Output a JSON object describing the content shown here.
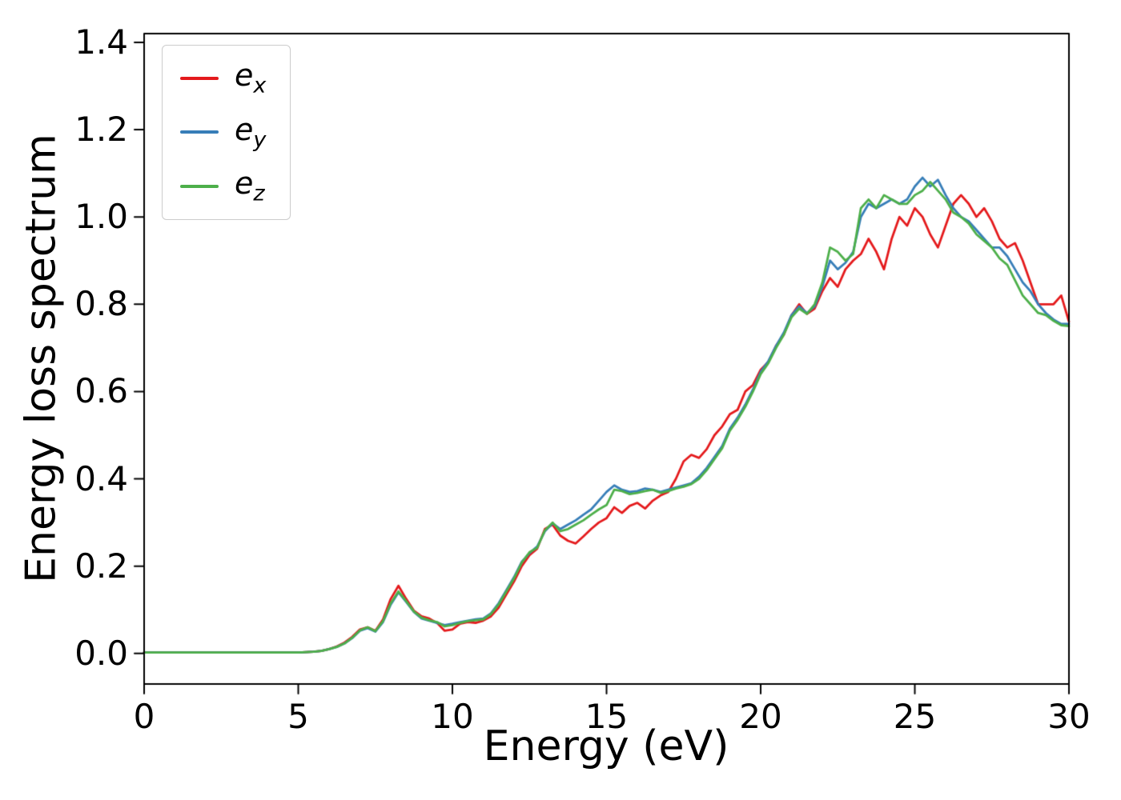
{
  "figure": {
    "background": "#ffffff"
  },
  "chart_data": {
    "type": "line",
    "title": "",
    "xlabel": "Energy (eV)",
    "ylabel": "Energy loss spectrum",
    "xlim": [
      0,
      30
    ],
    "ylim": [
      -0.07,
      1.42
    ],
    "grid": false,
    "legend_position": "upper left",
    "xticks": {
      "values": [
        0,
        5,
        10,
        15,
        20,
        25,
        30
      ],
      "labels": [
        "0",
        "5",
        "10",
        "15",
        "20",
        "25",
        "30"
      ]
    },
    "yticks": {
      "values": [
        0,
        0.2,
        0.4,
        0.6,
        0.8,
        1.0,
        1.2,
        1.4
      ],
      "labels": [
        "0.0",
        "0.2",
        "0.4",
        "0.6",
        "0.8",
        "1.0",
        "1.2",
        "1.4"
      ]
    },
    "x": [
      0,
      0.25,
      0.5,
      0.75,
      1,
      1.25,
      1.5,
      1.75,
      2,
      2.25,
      2.5,
      2.75,
      3,
      3.25,
      3.5,
      3.75,
      4,
      4.25,
      4.5,
      4.75,
      5,
      5.25,
      5.5,
      5.75,
      6,
      6.25,
      6.5,
      6.75,
      7,
      7.25,
      7.5,
      7.75,
      8,
      8.25,
      8.5,
      8.75,
      9,
      9.25,
      9.5,
      9.75,
      10,
      10.25,
      10.5,
      10.75,
      11,
      11.25,
      11.5,
      11.75,
      12,
      12.25,
      12.5,
      12.75,
      13,
      13.25,
      13.5,
      13.75,
      14,
      14.25,
      14.5,
      14.75,
      15,
      15.25,
      15.5,
      15.75,
      16,
      16.25,
      16.5,
      16.75,
      17,
      17.25,
      17.5,
      17.75,
      18,
      18.25,
      18.5,
      18.75,
      19,
      19.25,
      19.5,
      19.75,
      20,
      20.25,
      20.5,
      20.75,
      21,
      21.25,
      21.5,
      21.75,
      22,
      22.25,
      22.5,
      22.75,
      23,
      23.25,
      23.5,
      23.75,
      24,
      24.25,
      24.5,
      24.75,
      25,
      25.25,
      25.5,
      25.75,
      26,
      26.25,
      26.5,
      26.75,
      27,
      27.25,
      27.5,
      27.75,
      28,
      28.25,
      28.5,
      28.75,
      29,
      29.25,
      29.5,
      29.75,
      30
    ],
    "series": [
      {
        "name": "e_x",
        "label_main": "e",
        "label_sub": "x",
        "color": "#e41a1c",
        "values": [
          0.002,
          0.002,
          0.002,
          0.002,
          0.002,
          0.002,
          0.002,
          0.002,
          0.002,
          0.002,
          0.002,
          0.002,
          0.002,
          0.002,
          0.002,
          0.002,
          0.002,
          0.002,
          0.002,
          0.002,
          0.002,
          0.003,
          0.004,
          0.006,
          0.01,
          0.016,
          0.025,
          0.038,
          0.055,
          0.06,
          0.052,
          0.078,
          0.125,
          0.155,
          0.125,
          0.098,
          0.085,
          0.08,
          0.07,
          0.052,
          0.055,
          0.068,
          0.072,
          0.07,
          0.075,
          0.085,
          0.105,
          0.135,
          0.165,
          0.2,
          0.225,
          0.24,
          0.285,
          0.295,
          0.27,
          0.258,
          0.252,
          0.268,
          0.285,
          0.3,
          0.31,
          0.335,
          0.322,
          0.338,
          0.345,
          0.332,
          0.35,
          0.362,
          0.37,
          0.4,
          0.44,
          0.455,
          0.448,
          0.468,
          0.5,
          0.52,
          0.548,
          0.558,
          0.6,
          0.615,
          0.65,
          0.668,
          0.705,
          0.73,
          0.775,
          0.8,
          0.778,
          0.79,
          0.83,
          0.86,
          0.84,
          0.88,
          0.9,
          0.915,
          0.95,
          0.92,
          0.88,
          0.95,
          1.0,
          0.98,
          1.02,
          1.0,
          0.96,
          0.93,
          0.98,
          1.03,
          1.05,
          1.03,
          1.0,
          1.02,
          0.99,
          0.95,
          0.93,
          0.94,
          0.9,
          0.85,
          0.8,
          0.8,
          0.8,
          0.82,
          0.76
        ]
      },
      {
        "name": "e_y",
        "label_main": "e",
        "label_sub": "y",
        "color": "#377eb8",
        "values": [
          0.002,
          0.002,
          0.002,
          0.002,
          0.002,
          0.002,
          0.002,
          0.002,
          0.002,
          0.002,
          0.002,
          0.002,
          0.002,
          0.002,
          0.002,
          0.002,
          0.002,
          0.002,
          0.002,
          0.002,
          0.002,
          0.003,
          0.004,
          0.006,
          0.01,
          0.015,
          0.023,
          0.035,
          0.052,
          0.058,
          0.05,
          0.072,
          0.112,
          0.14,
          0.118,
          0.095,
          0.08,
          0.075,
          0.07,
          0.065,
          0.068,
          0.072,
          0.075,
          0.078,
          0.08,
          0.092,
          0.115,
          0.145,
          0.175,
          0.21,
          0.23,
          0.245,
          0.28,
          0.298,
          0.285,
          0.295,
          0.305,
          0.318,
          0.33,
          0.35,
          0.37,
          0.385,
          0.375,
          0.37,
          0.372,
          0.378,
          0.375,
          0.37,
          0.375,
          0.38,
          0.385,
          0.39,
          0.405,
          0.425,
          0.45,
          0.475,
          0.515,
          0.54,
          0.57,
          0.605,
          0.645,
          0.67,
          0.705,
          0.735,
          0.775,
          0.795,
          0.78,
          0.795,
          0.84,
          0.9,
          0.88,
          0.895,
          0.92,
          1.0,
          1.03,
          1.02,
          1.03,
          1.04,
          1.03,
          1.04,
          1.07,
          1.09,
          1.07,
          1.085,
          1.05,
          1.02,
          1.0,
          0.99,
          0.97,
          0.95,
          0.93,
          0.93,
          0.91,
          0.88,
          0.85,
          0.83,
          0.8,
          0.78,
          0.765,
          0.755,
          0.755
        ]
      },
      {
        "name": "e_z",
        "label_main": "e",
        "label_sub": "z",
        "color": "#4daf4a",
        "values": [
          0.002,
          0.002,
          0.002,
          0.002,
          0.002,
          0.002,
          0.002,
          0.002,
          0.002,
          0.002,
          0.002,
          0.002,
          0.002,
          0.002,
          0.002,
          0.002,
          0.002,
          0.002,
          0.002,
          0.002,
          0.002,
          0.003,
          0.004,
          0.006,
          0.01,
          0.015,
          0.023,
          0.036,
          0.053,
          0.06,
          0.051,
          0.074,
          0.115,
          0.142,
          0.12,
          0.096,
          0.082,
          0.076,
          0.072,
          0.062,
          0.065,
          0.07,
          0.074,
          0.076,
          0.078,
          0.09,
          0.112,
          0.142,
          0.172,
          0.208,
          0.232,
          0.242,
          0.282,
          0.3,
          0.28,
          0.285,
          0.295,
          0.305,
          0.318,
          0.33,
          0.34,
          0.375,
          0.372,
          0.365,
          0.368,
          0.372,
          0.375,
          0.368,
          0.372,
          0.378,
          0.382,
          0.388,
          0.4,
          0.42,
          0.445,
          0.47,
          0.51,
          0.535,
          0.565,
          0.6,
          0.64,
          0.665,
          0.7,
          0.73,
          0.77,
          0.79,
          0.778,
          0.8,
          0.85,
          0.93,
          0.92,
          0.9,
          0.915,
          1.02,
          1.04,
          1.02,
          1.05,
          1.04,
          1.03,
          1.03,
          1.05,
          1.06,
          1.08,
          1.06,
          1.04,
          1.01,
          1.0,
          0.985,
          0.96,
          0.945,
          0.93,
          0.905,
          0.89,
          0.855,
          0.82,
          0.8,
          0.78,
          0.775,
          0.762,
          0.752,
          0.75
        ]
      }
    ]
  }
}
